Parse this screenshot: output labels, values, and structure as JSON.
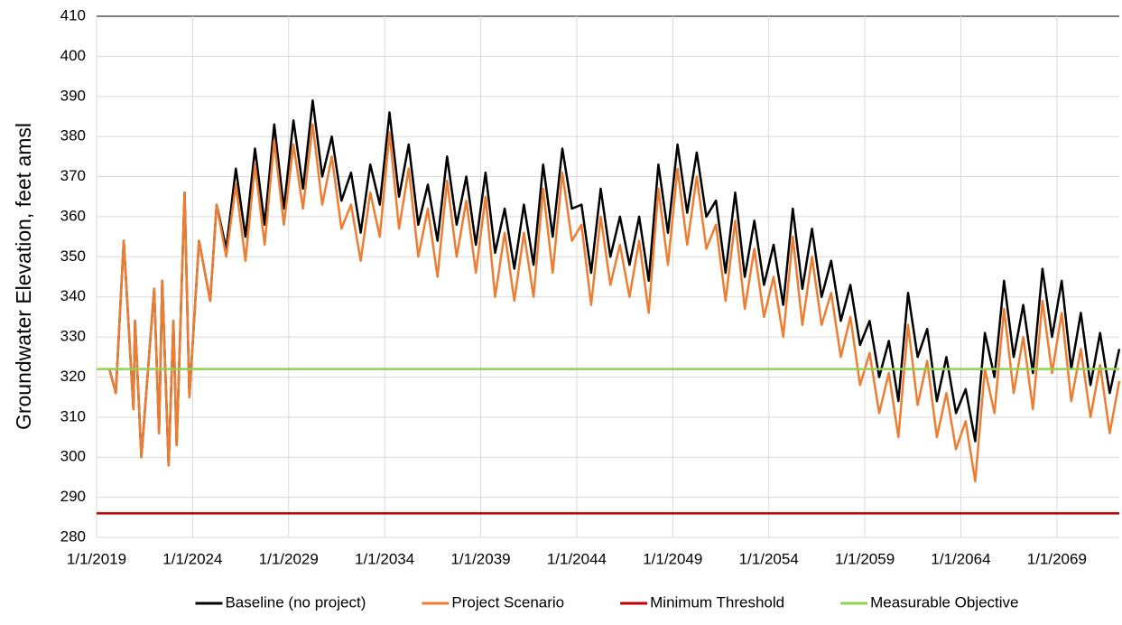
{
  "chart_data": {
    "type": "line",
    "y_label": "Groundwater Elevation, feet amsl",
    "x": [
      "9/1/2019",
      "1/1/2020",
      "6/1/2020",
      "12/1/2020",
      "1/1/2021",
      "5/1/2021",
      "1/1/2022",
      "4/1/2022",
      "6/1/2022",
      "10/1/2022",
      "1/1/2023",
      "3/1/2023",
      "8/1/2023",
      "11/1/2023",
      "5/1/2024",
      "12/1/2024",
      "4/1/2025",
      "10/1/2025",
      "4/1/2026",
      "10/1/2026",
      "4/1/2027",
      "10/1/2027",
      "4/1/2028",
      "10/1/2028",
      "4/1/2029",
      "10/1/2029",
      "4/1/2030",
      "10/1/2030",
      "4/1/2031",
      "10/1/2031",
      "4/1/2032",
      "10/1/2032",
      "4/1/2033",
      "10/1/2033",
      "4/1/2034",
      "10/1/2034",
      "4/1/2035",
      "10/1/2035",
      "4/1/2036",
      "10/1/2036",
      "4/1/2037",
      "10/1/2037",
      "4/1/2038",
      "10/1/2038",
      "4/1/2039",
      "10/1/2039",
      "4/1/2040",
      "10/1/2040",
      "4/1/2041",
      "10/1/2041",
      "4/1/2042",
      "10/1/2042",
      "4/1/2043",
      "10/1/2043",
      "4/1/2044",
      "10/1/2044",
      "4/1/2045",
      "10/1/2045",
      "4/1/2046",
      "10/1/2046",
      "4/1/2047",
      "10/1/2047",
      "4/1/2048",
      "10/1/2048",
      "4/1/2049",
      "10/1/2049",
      "4/1/2050",
      "10/1/2050",
      "4/1/2051",
      "10/1/2051",
      "4/1/2052",
      "10/1/2052",
      "4/1/2053",
      "10/1/2053",
      "4/1/2054",
      "10/1/2054",
      "4/1/2055",
      "10/1/2055",
      "4/1/2056",
      "10/1/2056",
      "4/1/2057",
      "10/1/2057",
      "4/1/2058",
      "10/1/2058",
      "4/1/2059",
      "10/1/2059",
      "4/1/2060",
      "10/1/2060",
      "4/1/2061",
      "10/1/2061",
      "4/1/2062",
      "10/1/2062",
      "4/1/2063",
      "10/1/2063",
      "4/1/2064",
      "10/1/2064",
      "4/1/2065",
      "10/1/2065",
      "4/1/2066",
      "10/1/2066",
      "4/1/2067",
      "10/1/2067",
      "4/1/2068",
      "10/1/2068",
      "4/1/2069",
      "10/1/2069",
      "4/1/2070",
      "10/1/2070",
      "4/1/2071",
      "10/1/2071",
      "4/1/2072"
    ],
    "series": [
      {
        "name": "Baseline (no project)",
        "color": "#000000",
        "values": [
          322,
          316,
          354,
          312,
          334,
          300,
          342,
          306,
          344,
          298,
          334,
          303,
          366,
          315,
          354,
          339,
          363,
          352,
          372,
          355,
          377,
          358,
          383,
          362,
          384,
          367,
          389,
          370,
          380,
          364,
          371,
          356,
          373,
          363,
          386,
          365,
          378,
          358,
          368,
          354,
          375,
          358,
          370,
          353,
          371,
          351,
          362,
          347,
          363,
          348,
          373,
          355,
          377,
          362,
          363,
          346,
          367,
          350,
          360,
          348,
          360,
          344,
          373,
          356,
          378,
          361,
          376,
          360,
          364,
          346,
          366,
          345,
          359,
          343,
          353,
          338,
          362,
          342,
          357,
          340,
          349,
          334,
          343,
          328,
          334,
          320,
          329,
          314,
          341,
          325,
          332,
          314,
          325,
          311,
          317,
          304,
          331,
          320,
          344,
          325,
          338,
          321,
          347,
          330,
          344,
          322,
          336,
          318,
          331,
          316,
          327
        ]
      },
      {
        "name": "Project Scenario",
        "color": "#ed7d31",
        "values": [
          322,
          316,
          354,
          312,
          334,
          300,
          342,
          306,
          344,
          298,
          334,
          303,
          366,
          315,
          354,
          339,
          363,
          350,
          368,
          349,
          373,
          353,
          379,
          358,
          378,
          362,
          383,
          363,
          375,
          357,
          363,
          349,
          366,
          355,
          381,
          357,
          372,
          350,
          362,
          345,
          369,
          350,
          364,
          346,
          365,
          340,
          356,
          339,
          356,
          340,
          367,
          346,
          371,
          354,
          358,
          338,
          360,
          343,
          353,
          340,
          354,
          336,
          367,
          348,
          372,
          353,
          370,
          352,
          358,
          339,
          359,
          337,
          352,
          335,
          345,
          330,
          355,
          333,
          350,
          333,
          341,
          325,
          335,
          318,
          326,
          311,
          321,
          305,
          333,
          313,
          324,
          305,
          316,
          302,
          309,
          294,
          322,
          311,
          337,
          316,
          330,
          312,
          339,
          321,
          336,
          314,
          327,
          310,
          323,
          306,
          319
        ]
      }
    ],
    "reference_lines": [
      {
        "name": "Minimum Threshold",
        "color": "#c00000",
        "value": 286
      },
      {
        "name": "Measurable Objective",
        "color": "#92d050",
        "value": 322
      }
    ],
    "xlim": [
      "1/1/2019",
      "4/1/2072"
    ],
    "xticks": [
      "1/1/2019",
      "1/1/2024",
      "1/1/2029",
      "1/1/2034",
      "1/1/2039",
      "1/1/2044",
      "1/1/2049",
      "1/1/2054",
      "1/1/2059",
      "1/1/2064",
      "1/1/2069"
    ],
    "ylim": [
      280,
      410
    ],
    "yticks": [
      280,
      290,
      300,
      310,
      320,
      330,
      340,
      350,
      360,
      370,
      380,
      390,
      400,
      410
    ],
    "grid": true,
    "legend": "bottom"
  }
}
